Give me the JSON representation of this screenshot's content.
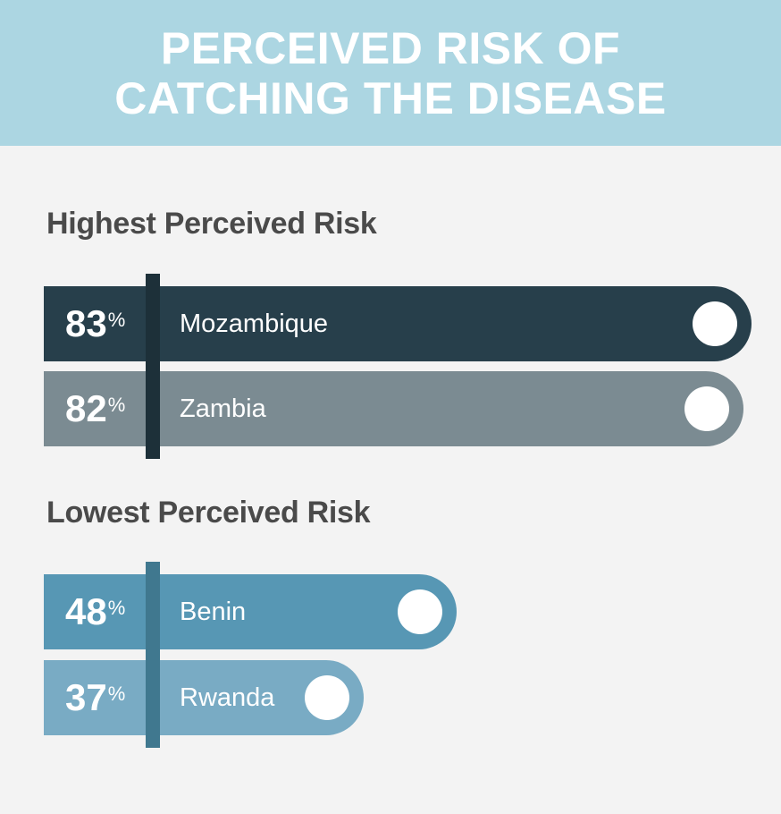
{
  "title_lines": [
    "PERCEIVED RISK OF",
    "CATCHING THE DISEASE"
  ],
  "chart_data": {
    "type": "bar",
    "groups": [
      {
        "label": "Highest Perceived Risk",
        "bars": [
          {
            "category": "Mozambique",
            "value": 83,
            "display": "83",
            "unit": "%",
            "color": "#273f4b"
          },
          {
            "category": "Zambia",
            "value": 82,
            "display": "82",
            "unit": "%",
            "color": "#7b8b92"
          }
        ],
        "divider_color": "#1d3039"
      },
      {
        "label": "Lowest Perceived Risk",
        "bars": [
          {
            "category": "Benin",
            "value": 48,
            "display": "48",
            "unit": "%",
            "color": "#5797b4"
          },
          {
            "category": "Rwanda",
            "value": 37,
            "display": "37",
            "unit": "%",
            "color": "#79abc4"
          }
        ],
        "divider_color": "#40788f"
      }
    ],
    "colors": {
      "banner": "#acd6e2",
      "background": "#f3f3f3"
    }
  }
}
